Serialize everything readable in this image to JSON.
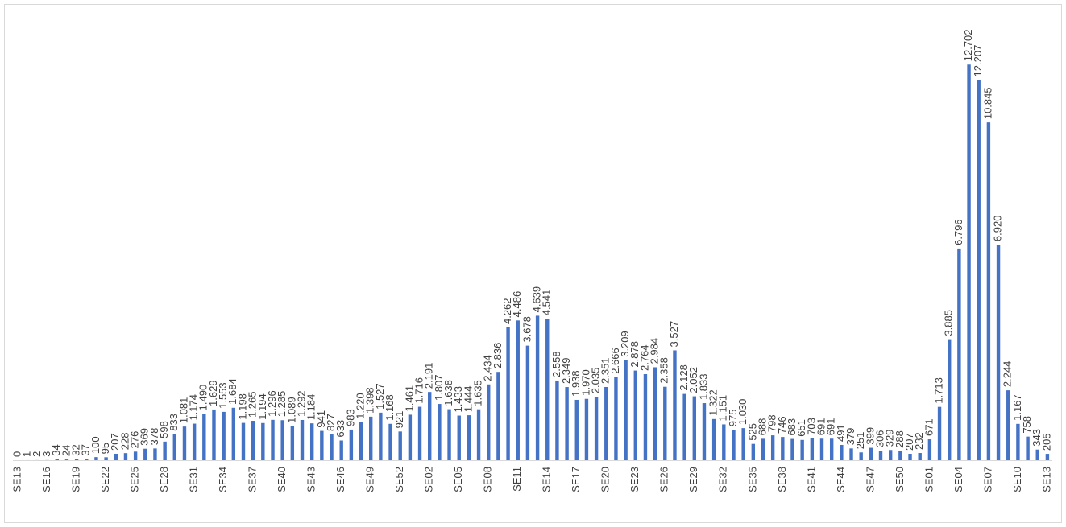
{
  "chart_data": {
    "type": "bar",
    "color": "#4472c4",
    "ylim": [
      0,
      14000
    ],
    "categories": [
      "SE13",
      null,
      null,
      "SE16",
      null,
      null,
      "SE19",
      null,
      null,
      "SE22",
      null,
      null,
      "SE25",
      null,
      null,
      "SE28",
      null,
      null,
      "SE31",
      null,
      null,
      "SE34",
      null,
      null,
      "SE37",
      null,
      null,
      "SE40",
      null,
      null,
      "SE43",
      null,
      null,
      "SE46",
      null,
      null,
      "SE49",
      null,
      null,
      "SE52",
      null,
      null,
      "SE02",
      null,
      null,
      "SE05",
      null,
      null,
      "SE08",
      null,
      null,
      "SE11",
      null,
      null,
      "SE14",
      null,
      null,
      "SE17",
      null,
      null,
      "SE20",
      null,
      null,
      "SE23",
      null,
      null,
      "SE26",
      null,
      null,
      "SE29",
      null,
      null,
      "SE32",
      null,
      null,
      "SE35",
      null,
      null,
      "SE38",
      null,
      null,
      "SE41",
      null,
      null,
      "SE44",
      null,
      null,
      "SE47",
      null,
      null,
      "SE50",
      null,
      null,
      "SE01",
      null,
      null,
      "SE04",
      null,
      null,
      "SE07",
      null,
      null,
      "SE10",
      null,
      null,
      "SE13"
    ],
    "values": [
      0,
      1,
      2,
      3,
      34,
      24,
      32,
      37,
      100,
      95,
      207,
      228,
      276,
      369,
      378,
      598,
      833,
      1081,
      1174,
      1490,
      1629,
      1553,
      1684,
      1198,
      1265,
      1194,
      1296,
      1285,
      1089,
      1292,
      1184,
      941,
      827,
      633,
      983,
      1220,
      1398,
      1527,
      1168,
      921,
      1461,
      1716,
      2191,
      1807,
      1638,
      1433,
      1444,
      1635,
      2434,
      2836,
      4262,
      4486,
      3678,
      4639,
      4541,
      2558,
      2349,
      1938,
      1970,
      2035,
      2351,
      2666,
      3209,
      2878,
      2764,
      2984,
      2358,
      3527,
      2128,
      2052,
      1833,
      1322,
      1151,
      975,
      1030,
      525,
      688,
      798,
      746,
      683,
      651,
      703,
      691,
      691,
      491,
      379,
      251,
      399,
      306,
      329,
      288,
      207,
      232,
      671,
      1713,
      3885,
      6796,
      12702,
      12207,
      10845,
      6920,
      2244,
      1167,
      758,
      343,
      205
    ],
    "value_labels": [
      "0",
      "1",
      "2",
      "3",
      "34",
      "24",
      "32",
      "37",
      "100",
      "95",
      "207",
      "228",
      "276",
      "369",
      "378",
      "598",
      "833",
      "1.081",
      "1.174",
      "1.490",
      "1.629",
      "1.553",
      "1.684",
      "1.198",
      "1.265",
      "1.194",
      "1.296",
      "1.285",
      "1.089",
      "1.292",
      "1.184",
      "941",
      "827",
      "633",
      "983",
      "1.220",
      "1.398",
      "1.527",
      "1.168",
      "921",
      "1.461",
      "1.716",
      "2.191",
      "1.807",
      "1.638",
      "1.433",
      "1.444",
      "1.635",
      "2.434",
      "2.836",
      "4.262",
      "4.486",
      "3.678",
      "4.639",
      "4.541",
      "2.558",
      "2.349",
      "1.938",
      "1.970",
      "2.035",
      "2.351",
      "2.666",
      "3.209",
      "2.878",
      "2.764",
      "2.984",
      "2.358",
      "3.527",
      "2.128",
      "2.052",
      "1.833",
      "1.322",
      "1.151",
      "975",
      "1.030",
      "525",
      "688",
      "798",
      "746",
      "683",
      "651",
      "703",
      "691",
      "691",
      "491",
      "379",
      "251",
      "399",
      "306",
      "329",
      "288",
      "207",
      "232",
      "671",
      "1.713",
      "3.885",
      "6.796",
      "12.702",
      "12.207",
      "10.845",
      "6.920",
      "2.244",
      "1.167",
      "758",
      "343",
      "205"
    ]
  }
}
